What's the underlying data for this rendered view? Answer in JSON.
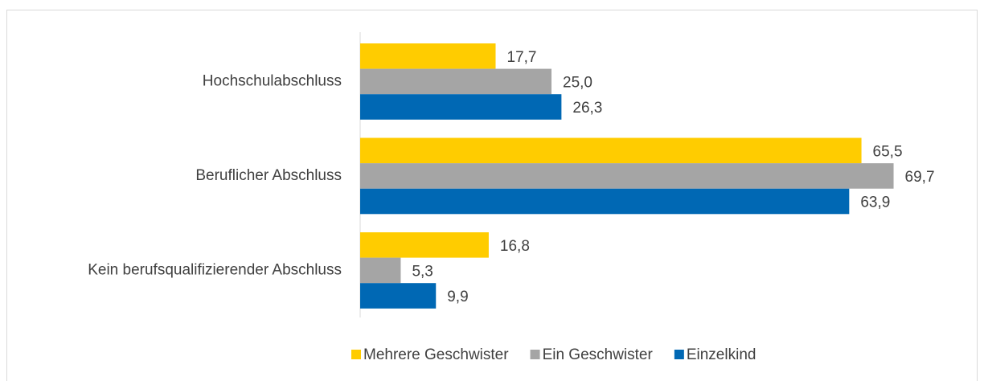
{
  "chart_data": {
    "type": "barh",
    "categories": [
      "Hochschulabschluss",
      "Beruflicher Abschluss",
      "Kein berufsqualifizierender Abschluss"
    ],
    "series": [
      {
        "name": "Mehrere Geschwister",
        "color": "#ffcc00",
        "values": [
          17.7,
          65.5,
          16.8
        ],
        "value_labels": [
          "17,7",
          "65,5",
          "16,8"
        ]
      },
      {
        "name": "Ein Geschwister",
        "color": "#a5a5a5",
        "values": [
          25.0,
          69.7,
          5.3
        ],
        "value_labels": [
          "25,0",
          "69,7",
          "5,3"
        ]
      },
      {
        "name": "Einzelkind",
        "color": "#0068b4",
        "values": [
          26.3,
          63.9,
          9.9
        ],
        "value_labels": [
          "26,3",
          "63,9",
          "9,9"
        ]
      }
    ],
    "xlim": [
      0,
      75
    ],
    "legend": "bottom"
  }
}
